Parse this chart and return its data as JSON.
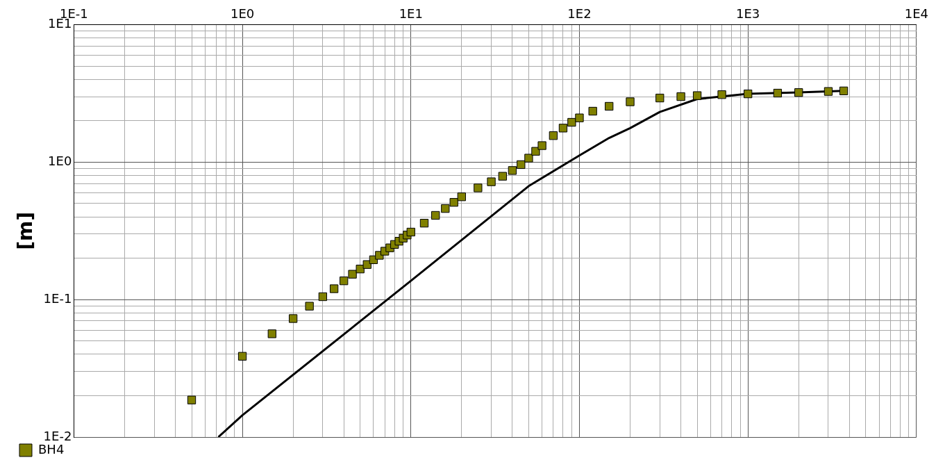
{
  "chart_data": {
    "type": "scatter",
    "ylabel": "[m]",
    "log": "xy",
    "grid": true,
    "legend": "bottom left",
    "xlim": [
      0.1,
      10000
    ],
    "ylim": [
      0.01,
      10
    ],
    "xticks": [
      {
        "value": 0.1,
        "label": "1E-1"
      },
      {
        "value": 0.2,
        "label": null
      },
      {
        "value": 0.3,
        "label": null
      },
      {
        "value": 0.4,
        "label": null
      },
      {
        "value": 0.5,
        "label": null
      },
      {
        "value": 0.6,
        "label": null
      },
      {
        "value": 0.7,
        "label": null
      },
      {
        "value": 0.8,
        "label": null
      },
      {
        "value": 0.9,
        "label": null
      },
      {
        "value": 1,
        "label": "1E0"
      },
      {
        "value": 2,
        "label": null
      },
      {
        "value": 3,
        "label": null
      },
      {
        "value": 4,
        "label": null
      },
      {
        "value": 5,
        "label": null
      },
      {
        "value": 6,
        "label": null
      },
      {
        "value": 7,
        "label": null
      },
      {
        "value": 8,
        "label": null
      },
      {
        "value": 9,
        "label": null
      },
      {
        "value": 10,
        "label": "1E1"
      },
      {
        "value": 20,
        "label": null
      },
      {
        "value": 30,
        "label": null
      },
      {
        "value": 40,
        "label": null
      },
      {
        "value": 50,
        "label": null
      },
      {
        "value": 60,
        "label": null
      },
      {
        "value": 70,
        "label": null
      },
      {
        "value": 80,
        "label": null
      },
      {
        "value": 90,
        "label": null
      },
      {
        "value": 100,
        "label": "1E2"
      },
      {
        "value": 200,
        "label": null
      },
      {
        "value": 300,
        "label": null
      },
      {
        "value": 400,
        "label": null
      },
      {
        "value": 500,
        "label": null
      },
      {
        "value": 600,
        "label": null
      },
      {
        "value": 700,
        "label": null
      },
      {
        "value": 800,
        "label": null
      },
      {
        "value": 900,
        "label": null
      },
      {
        "value": 1000,
        "label": "1E3"
      },
      {
        "value": 2000,
        "label": null
      },
      {
        "value": 3000,
        "label": null
      },
      {
        "value": 4000,
        "label": null
      },
      {
        "value": 5000,
        "label": null
      },
      {
        "value": 6000,
        "label": null
      },
      {
        "value": 7000,
        "label": null
      },
      {
        "value": 8000,
        "label": null
      },
      {
        "value": 9000,
        "label": null
      },
      {
        "value": 10000,
        "label": "1E4"
      }
    ],
    "yticks": [
      {
        "value": 0.01,
        "label": "1E-2"
      },
      {
        "value": 0.02,
        "label": null
      },
      {
        "value": 0.03,
        "label": null
      },
      {
        "value": 0.04,
        "label": null
      },
      {
        "value": 0.05,
        "label": null
      },
      {
        "value": 0.06,
        "label": null
      },
      {
        "value": 0.07,
        "label": null
      },
      {
        "value": 0.08,
        "label": null
      },
      {
        "value": 0.09,
        "label": null
      },
      {
        "value": 0.1,
        "label": "1E-1"
      },
      {
        "value": 0.2,
        "label": null
      },
      {
        "value": 0.3,
        "label": null
      },
      {
        "value": 0.4,
        "label": null
      },
      {
        "value": 0.5,
        "label": null
      },
      {
        "value": 0.6,
        "label": null
      },
      {
        "value": 0.7,
        "label": null
      },
      {
        "value": 0.8,
        "label": null
      },
      {
        "value": 0.9,
        "label": null
      },
      {
        "value": 1,
        "label": "1E0"
      },
      {
        "value": 2,
        "label": null
      },
      {
        "value": 3,
        "label": null
      },
      {
        "value": 4,
        "label": null
      },
      {
        "value": 5,
        "label": null
      },
      {
        "value": 6,
        "label": null
      },
      {
        "value": 7,
        "label": null
      },
      {
        "value": 8,
        "label": null
      },
      {
        "value": 9,
        "label": null
      },
      {
        "value": 10,
        "label": "1E1"
      }
    ],
    "series": [
      {
        "name": "BH4",
        "marker": "square",
        "color": "#808000",
        "x": [
          0.5,
          1,
          1.5,
          2,
          2.5,
          3,
          3.5,
          4,
          4.5,
          5,
          5.5,
          6,
          6.5,
          7,
          7.5,
          8,
          8.5,
          9,
          9.5,
          10,
          12,
          14,
          16,
          18,
          20,
          25,
          30,
          35,
          40,
          45,
          50,
          55,
          60,
          70,
          80,
          90,
          100,
          120,
          150,
          200,
          300,
          400,
          500,
          700,
          1000,
          1500,
          2000,
          3000,
          3700
        ],
        "values": [
          0.0186,
          0.0387,
          0.0564,
          0.0728,
          0.0896,
          0.105,
          0.12,
          0.137,
          0.153,
          0.167,
          0.18,
          0.195,
          0.21,
          0.225,
          0.238,
          0.252,
          0.266,
          0.28,
          0.295,
          0.31,
          0.36,
          0.41,
          0.46,
          0.51,
          0.56,
          0.65,
          0.72,
          0.79,
          0.87,
          0.96,
          1.07,
          1.2,
          1.32,
          1.56,
          1.77,
          1.95,
          2.1,
          2.35,
          2.55,
          2.75,
          2.93,
          3.0,
          3.05,
          3.1,
          3.14,
          3.18,
          3.21,
          3.27,
          3.3
        ]
      },
      {
        "type": "line",
        "marker": "none",
        "color": "#000000",
        "x": [
          0.72,
          1,
          10,
          50,
          100,
          150,
          200,
          300,
          500,
          1000,
          2000,
          3700
        ],
        "values": [
          0.01,
          0.0144,
          0.137,
          0.67,
          1.12,
          1.5,
          1.77,
          2.32,
          2.88,
          3.14,
          3.22,
          3.3
        ]
      }
    ]
  }
}
